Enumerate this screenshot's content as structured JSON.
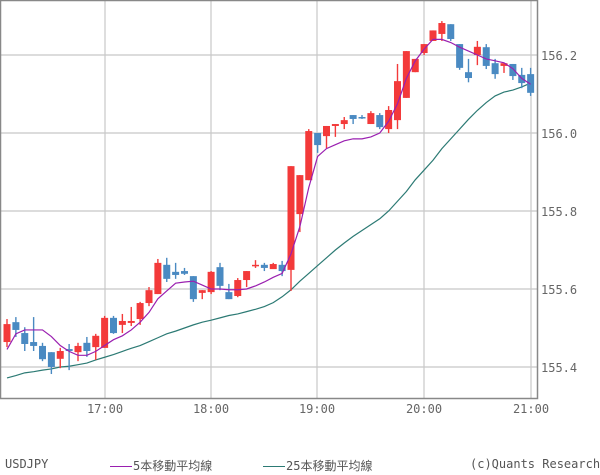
{
  "chart_data": {
    "type": "candlestick",
    "title": "",
    "symbol": "USDJPY",
    "xlabel": "",
    "ylabel": "",
    "ylim": [
      155.315,
      156.33
    ],
    "y_ticks": [
      155.4,
      155.6,
      155.8,
      156.0,
      156.2
    ],
    "y_tick_labels": [
      "155.4",
      "155.6",
      "155.8",
      "156.0",
      "156.2"
    ],
    "x_ticks": [
      "17:00",
      "18:00",
      "19:00",
      "20:00",
      "21:00"
    ],
    "interval": "5min",
    "grid": true,
    "legend_position": "bottom",
    "colors": {
      "up": "#f33a3a",
      "down": "#4a8ac2",
      "ma5": "#9a1fb0",
      "ma25": "#2c7a74",
      "grid": "#c8c8c8",
      "axis": "#888888"
    },
    "candles": [
      {
        "o": 155.464,
        "h": 155.523,
        "l": 155.451,
        "c": 155.51
      },
      {
        "o": 155.515,
        "h": 155.528,
        "l": 155.477,
        "c": 155.495
      },
      {
        "o": 155.487,
        "h": 155.502,
        "l": 155.441,
        "c": 155.459
      },
      {
        "o": 155.464,
        "h": 155.528,
        "l": 155.441,
        "c": 155.454
      },
      {
        "o": 155.454,
        "h": 155.462,
        "l": 155.415,
        "c": 155.42
      },
      {
        "o": 155.438,
        "h": 155.438,
        "l": 155.382,
        "c": 155.4
      },
      {
        "o": 155.421,
        "h": 155.449,
        "l": 155.397,
        "c": 155.441
      },
      {
        "o": 155.446,
        "h": 155.459,
        "l": 155.392,
        "c": 155.441
      },
      {
        "o": 155.438,
        "h": 155.462,
        "l": 155.415,
        "c": 155.454
      },
      {
        "o": 155.462,
        "h": 155.477,
        "l": 155.426,
        "c": 155.441
      },
      {
        "o": 155.451,
        "h": 155.485,
        "l": 155.418,
        "c": 155.48
      },
      {
        "o": 155.449,
        "h": 155.531,
        "l": 155.449,
        "c": 155.526
      },
      {
        "o": 155.526,
        "h": 155.531,
        "l": 155.485,
        "c": 155.487
      },
      {
        "o": 155.508,
        "h": 155.536,
        "l": 155.487,
        "c": 155.518
      },
      {
        "o": 155.513,
        "h": 155.554,
        "l": 155.505,
        "c": 155.518
      },
      {
        "o": 155.523,
        "h": 155.567,
        "l": 155.508,
        "c": 155.564
      },
      {
        "o": 155.564,
        "h": 155.605,
        "l": 155.556,
        "c": 155.597
      },
      {
        "o": 155.587,
        "h": 155.677,
        "l": 155.587,
        "c": 155.667
      },
      {
        "o": 155.662,
        "h": 155.68,
        "l": 155.618,
        "c": 155.626
      },
      {
        "o": 155.644,
        "h": 155.667,
        "l": 155.626,
        "c": 155.636
      },
      {
        "o": 155.646,
        "h": 155.654,
        "l": 155.636,
        "c": 155.639
      },
      {
        "o": 155.633,
        "h": 155.633,
        "l": 155.567,
        "c": 155.574
      },
      {
        "o": 155.59,
        "h": 155.597,
        "l": 155.574,
        "c": 155.597
      },
      {
        "o": 155.592,
        "h": 155.646,
        "l": 155.587,
        "c": 155.644
      },
      {
        "o": 155.656,
        "h": 155.667,
        "l": 155.597,
        "c": 155.608
      },
      {
        "o": 155.592,
        "h": 155.613,
        "l": 155.574,
        "c": 155.574
      },
      {
        "o": 155.582,
        "h": 155.628,
        "l": 155.579,
        "c": 155.623
      },
      {
        "o": 155.623,
        "h": 155.646,
        "l": 155.605,
        "c": 155.646
      },
      {
        "o": 155.662,
        "h": 155.674,
        "l": 155.654,
        "c": 155.662
      },
      {
        "o": 155.662,
        "h": 155.667,
        "l": 155.646,
        "c": 155.654
      },
      {
        "o": 155.651,
        "h": 155.667,
        "l": 155.654,
        "c": 155.664
      },
      {
        "o": 155.662,
        "h": 155.672,
        "l": 155.633,
        "c": 155.646
      },
      {
        "o": 155.649,
        "h": 155.915,
        "l": 155.595,
        "c": 155.915
      },
      {
        "o": 155.792,
        "h": 155.892,
        "l": 155.746,
        "c": 155.892
      },
      {
        "o": 155.879,
        "h": 156.01,
        "l": 155.879,
        "c": 156.005
      },
      {
        "o": 156.0,
        "h": 156.0,
        "l": 155.949,
        "c": 155.969
      },
      {
        "o": 155.992,
        "h": 156.018,
        "l": 155.961,
        "c": 156.018
      },
      {
        "o": 156.018,
        "h": 156.023,
        "l": 155.99,
        "c": 156.023
      },
      {
        "o": 156.023,
        "h": 156.041,
        "l": 156.01,
        "c": 156.033
      },
      {
        "o": 156.046,
        "h": 156.046,
        "l": 156.023,
        "c": 156.036
      },
      {
        "o": 156.041,
        "h": 156.046,
        "l": 156.036,
        "c": 156.038
      },
      {
        "o": 156.023,
        "h": 156.056,
        "l": 156.023,
        "c": 156.051
      },
      {
        "o": 156.046,
        "h": 156.051,
        "l": 156.01,
        "c": 156.015
      },
      {
        "o": 156.01,
        "h": 156.069,
        "l": 156.0,
        "c": 156.059
      },
      {
        "o": 156.033,
        "h": 156.177,
        "l": 156.01,
        "c": 156.133
      },
      {
        "o": 156.09,
        "h": 156.21,
        "l": 156.09,
        "c": 156.21
      },
      {
        "o": 156.156,
        "h": 156.19,
        "l": 156.156,
        "c": 156.19
      },
      {
        "o": 156.205,
        "h": 156.228,
        "l": 156.2,
        "c": 156.228
      },
      {
        "o": 156.236,
        "h": 156.263,
        "l": 156.236,
        "c": 156.263
      },
      {
        "o": 156.254,
        "h": 156.287,
        "l": 156.236,
        "c": 156.282
      },
      {
        "o": 156.279,
        "h": 156.279,
        "l": 156.236,
        "c": 156.241
      },
      {
        "o": 156.228,
        "h": 156.228,
        "l": 156.162,
        "c": 156.167
      },
      {
        "o": 156.156,
        "h": 156.19,
        "l": 156.13,
        "c": 156.141
      },
      {
        "o": 156.2,
        "h": 156.236,
        "l": 156.174,
        "c": 156.221
      },
      {
        "o": 156.22,
        "h": 156.228,
        "l": 156.164,
        "c": 156.172
      },
      {
        "o": 156.179,
        "h": 156.19,
        "l": 156.139,
        "c": 156.151
      },
      {
        "o": 156.172,
        "h": 156.177,
        "l": 156.154,
        "c": 156.179
      },
      {
        "o": 156.177,
        "h": 156.177,
        "l": 156.136,
        "c": 156.146
      },
      {
        "o": 156.149,
        "h": 156.167,
        "l": 156.115,
        "c": 156.128
      },
      {
        "o": 156.151,
        "h": 156.167,
        "l": 156.095,
        "c": 156.103
      }
    ],
    "ma5": [
      155.445,
      155.485,
      155.495,
      155.495,
      155.495,
      155.478,
      155.455,
      155.44,
      155.43,
      155.43,
      155.44,
      155.455,
      155.47,
      155.48,
      155.495,
      155.515,
      155.54,
      155.575,
      155.595,
      155.615,
      155.618,
      155.62,
      155.61,
      155.6,
      155.6,
      155.598,
      155.598,
      155.6,
      155.608,
      155.618,
      155.63,
      155.64,
      155.69,
      155.76,
      155.86,
      155.94,
      155.96,
      155.97,
      155.98,
      155.985,
      155.985,
      155.99,
      156.0,
      156.03,
      156.075,
      156.14,
      156.185,
      156.215,
      156.24,
      156.24,
      156.232,
      156.22,
      156.21,
      156.2,
      156.19,
      156.185,
      156.18,
      156.165,
      156.14,
      156.125
    ],
    "ma25": [
      155.372,
      155.378,
      155.385,
      155.388,
      155.392,
      155.395,
      155.4,
      155.402,
      155.406,
      155.41,
      155.418,
      155.425,
      155.432,
      155.44,
      155.448,
      155.455,
      155.465,
      155.475,
      155.485,
      155.492,
      155.5,
      155.508,
      155.515,
      155.52,
      155.526,
      155.532,
      155.536,
      155.542,
      155.548,
      155.555,
      155.565,
      155.58,
      155.598,
      155.62,
      155.64,
      155.66,
      155.68,
      155.7,
      155.718,
      155.735,
      155.75,
      155.765,
      155.78,
      155.8,
      155.825,
      155.85,
      155.88,
      155.905,
      155.93,
      155.96,
      155.985,
      156.01,
      156.035,
      156.058,
      156.078,
      156.095,
      156.105,
      156.11,
      156.118,
      156.128
    ]
  },
  "legend": {
    "symbol_label": "USDJPY",
    "ma5_label": "5本移動平均線",
    "ma25_label": "25本移動平均線",
    "copyright": "(c)Quants Research"
  }
}
